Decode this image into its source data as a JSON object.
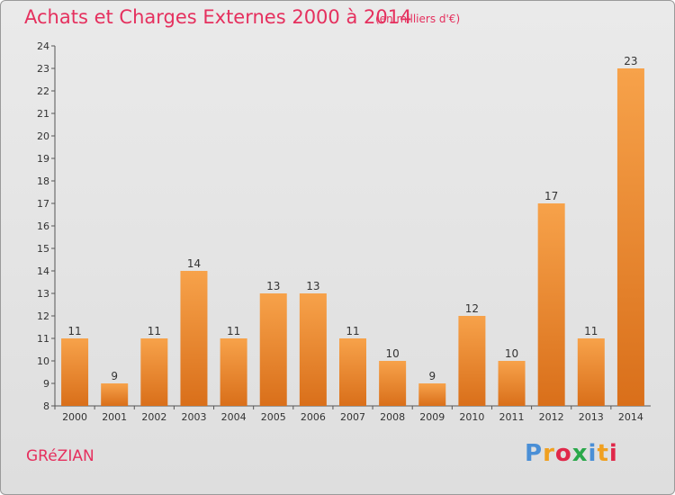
{
  "title": "Achats et Charges Externes 2000 à 2014",
  "unit": "(en milliers d'€)",
  "commune": "GRéZIAN",
  "logo": {
    "letters": [
      "P",
      "r",
      "o",
      "x",
      "i",
      "t",
      "i"
    ],
    "colors": [
      "#4a8fd6",
      "#f0a020",
      "#e0284a",
      "#2aa84a",
      "#4a8fd6",
      "#f0a020",
      "#e0284a"
    ]
  },
  "colors": {
    "bar_light": "#f7a24a",
    "bar_dark": "#d96f1a",
    "accent": "#e5305e"
  },
  "chart_data": {
    "type": "bar",
    "categories": [
      "2000",
      "2001",
      "2002",
      "2003",
      "2004",
      "2005",
      "2006",
      "2007",
      "2008",
      "2009",
      "2010",
      "2011",
      "2012",
      "2013",
      "2014"
    ],
    "values": [
      11,
      9,
      11,
      14,
      11,
      13,
      13,
      11,
      10,
      9,
      12,
      10,
      17,
      11,
      23
    ],
    "data_labels": [
      "11",
      "9",
      "11",
      "14",
      "11",
      "13",
      "13",
      "11",
      "10",
      "9",
      "12",
      "10",
      "17",
      "11",
      "23"
    ],
    "ylim": [
      8,
      24
    ],
    "yticks": [
      8,
      9,
      10,
      11,
      12,
      13,
      14,
      15,
      16,
      17,
      18,
      19,
      20,
      21,
      22,
      23,
      24
    ],
    "grid": false,
    "xlabel": "",
    "ylabel": ""
  }
}
